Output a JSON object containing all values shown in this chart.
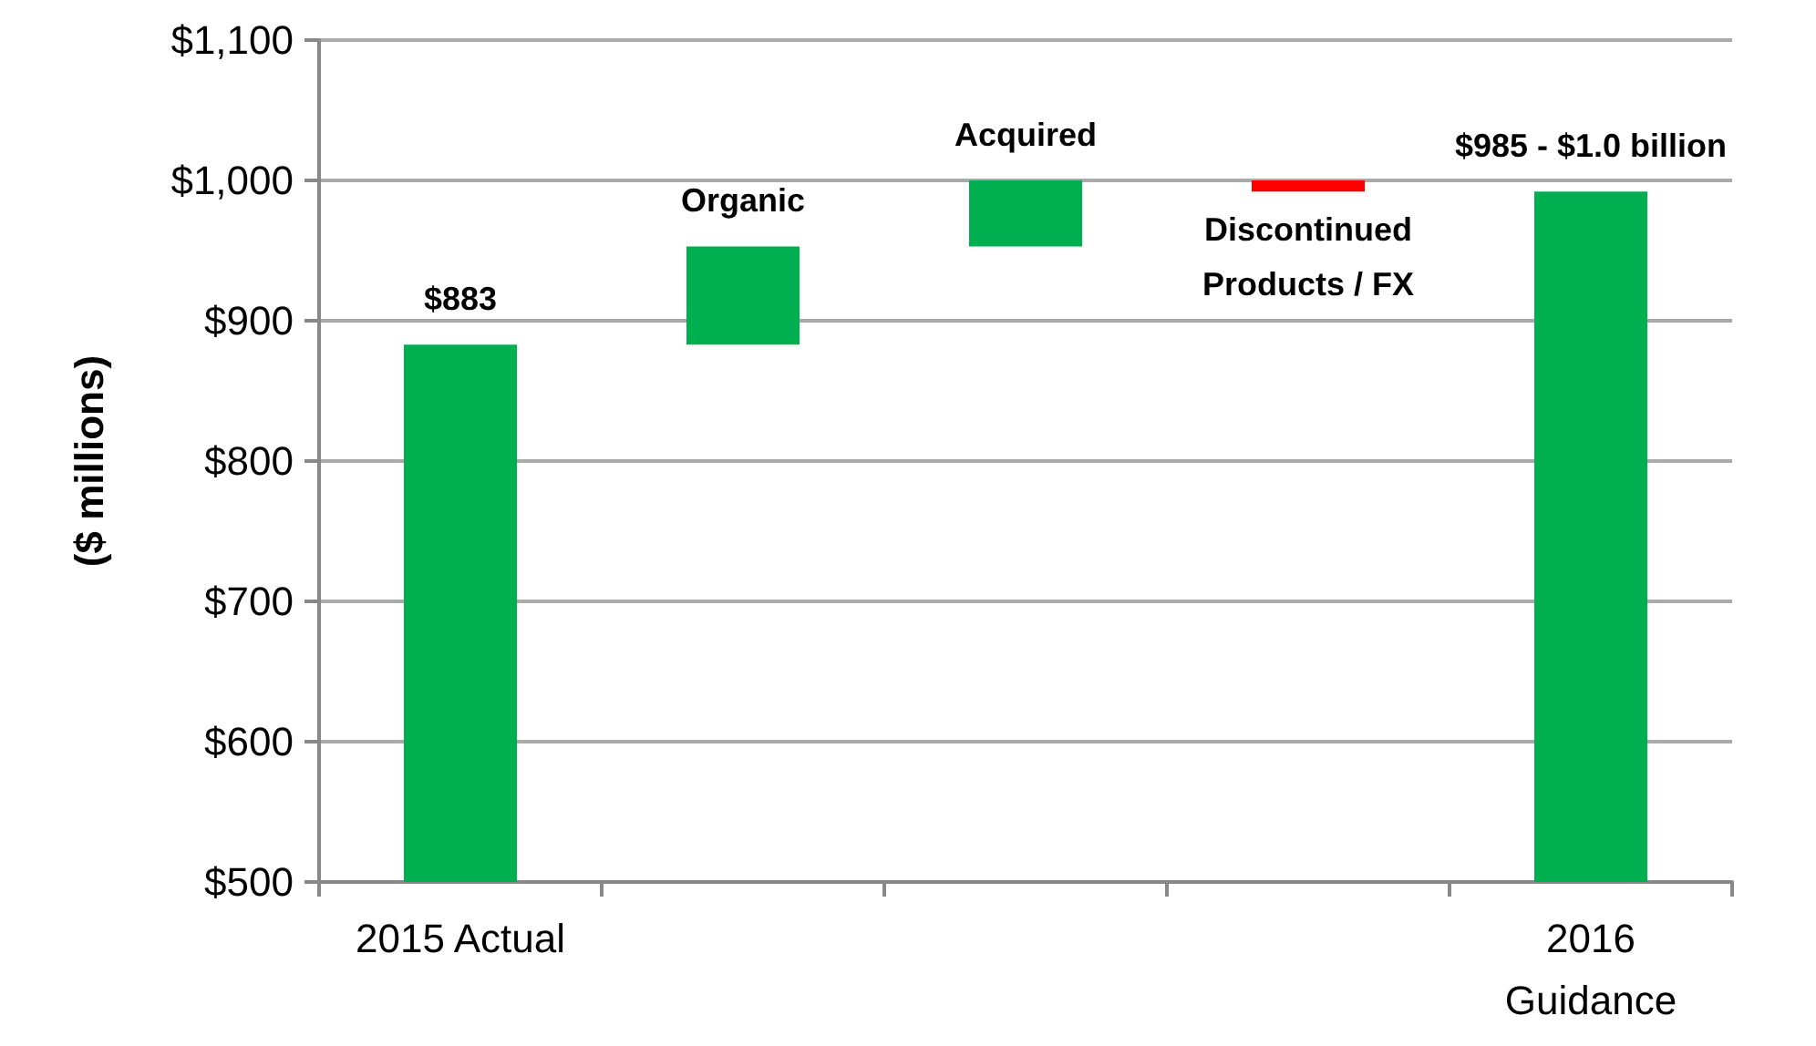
{
  "chart_data": {
    "type": "bar",
    "ylabel": "($ millions)",
    "categories": [
      "2015 Actual",
      null,
      null,
      null,
      "2016 Guidance"
    ],
    "base": [
      500,
      883,
      953,
      1000,
      500
    ],
    "values": [
      383,
      70,
      47,
      -8,
      492
    ],
    "colors": [
      "#00b050",
      "#00b050",
      "#00b050",
      "#ff0000",
      "#00b050"
    ],
    "annotations": [
      "$883",
      "Organic",
      "Acquired",
      "Discontinued Products / FX",
      "$985 - $1.0 billion"
    ],
    "ylim": [
      500,
      1100
    ],
    "yticks": [
      {
        "value": 500,
        "label": "$500"
      },
      {
        "value": 600,
        "label": "$600"
      },
      {
        "value": 700,
        "label": "$700"
      },
      {
        "value": 800,
        "label": "$800"
      },
      {
        "value": 900,
        "label": "$900"
      },
      {
        "value": 1000,
        "label": "$1,000"
      },
      {
        "value": 1100,
        "label": "$1,100"
      }
    ],
    "grid": "y"
  }
}
